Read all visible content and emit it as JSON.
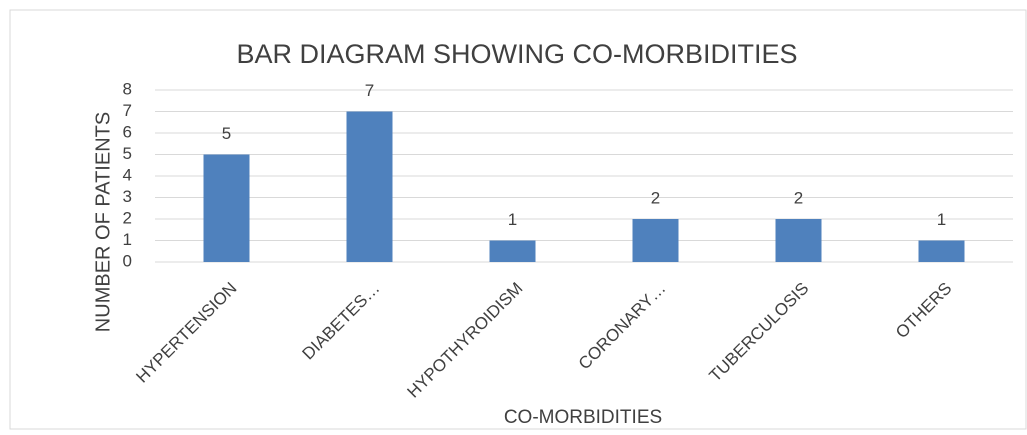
{
  "chart_data": {
    "type": "bar",
    "title": "BAR DIAGRAM SHOWING CO-MORBIDITIES",
    "x_label": "CO-MORBIDITIES",
    "y_label": "NUMBER OF PATIENTS",
    "categories": [
      "HYPERTENSION",
      "DIABETES…",
      "HYPOTHYROIDISM",
      "CORONARY…",
      "TUBERCULOSIS",
      "OTHERS"
    ],
    "values": [
      5,
      7,
      1,
      2,
      2,
      1
    ],
    "color": "#4f81bd",
    "ylim": [
      0,
      8
    ],
    "yticks": [
      0,
      1,
      2,
      3,
      4,
      5,
      6,
      7,
      8
    ],
    "grid": true
  }
}
